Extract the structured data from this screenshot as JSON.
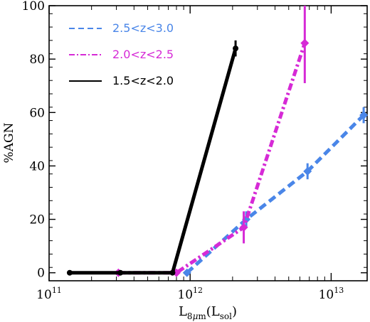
{
  "chart_data": {
    "type": "line",
    "title": "",
    "xlabel": {
      "main": "L",
      "sub1": "8",
      "mu": "μ",
      "sub2": "m",
      "paren_open": "(L",
      "sub3": "sol",
      "paren_close": ")"
    },
    "ylabel": "%AGN",
    "x_scale": "log",
    "xlim": [
      100000000000.0,
      18000000000000.0
    ],
    "ylim": [
      -3,
      100
    ],
    "y_ticks": [
      0,
      20,
      40,
      60,
      80,
      100
    ],
    "y_tick_labels": [
      "0",
      "20",
      "40",
      "60",
      "80",
      "100"
    ],
    "x_ticks": [
      100000000000.0,
      1000000000000.0,
      10000000000000.0
    ],
    "x_tick_labels": [
      {
        "base": "10",
        "exp": "11"
      },
      {
        "base": "10",
        "exp": "12"
      },
      {
        "base": "10",
        "exp": "13"
      }
    ],
    "grid": false,
    "legend_position": "top-left",
    "series": [
      {
        "name": "2.5<z<3.0",
        "color": "#4a86e8",
        "style": "dashed",
        "marker": "diamond",
        "points": [
          {
            "x": 950000000000.0,
            "y": 0,
            "err": 0
          },
          {
            "x": 2500000000000.0,
            "y": 20,
            "err": 3
          },
          {
            "x": 6800000000000.0,
            "y": 38,
            "err": 3
          },
          {
            "x": 17000000000000.0,
            "y": 59,
            "err": 3
          }
        ]
      },
      {
        "name": "2.0<z<2.5",
        "color": "#d62ad6",
        "style": "dashdot",
        "marker": "diamond",
        "points": [
          {
            "x": 310000000000.0,
            "y": 0,
            "err": 0
          },
          {
            "x": 800000000000.0,
            "y": 0,
            "err": 0
          },
          {
            "x": 2400000000000.0,
            "y": 17,
            "err": 6
          },
          {
            "x": 6500000000000.0,
            "y": 86,
            "err": 15
          }
        ]
      },
      {
        "name": "1.5<z<2.0",
        "color": "#000000",
        "style": "solid",
        "marker": "circle",
        "points": [
          {
            "x": 140000000000.0,
            "y": 0,
            "err": 0
          },
          {
            "x": 320000000000.0,
            "y": 0,
            "err": 0
          },
          {
            "x": 750000000000.0,
            "y": 0,
            "err": 0
          },
          {
            "x": 2100000000000.0,
            "y": 84,
            "err": 3
          }
        ]
      }
    ]
  }
}
